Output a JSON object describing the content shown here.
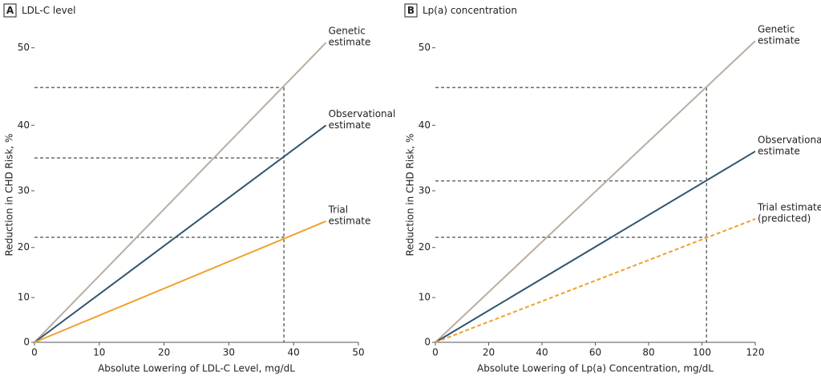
{
  "chart_data": [
    {
      "type": "line",
      "panel": "A",
      "title": "LDL-C level",
      "x_label": "Absolute Lowering of LDL-C Level, mg/dL",
      "y_label": "Reduction in CHD Risk, %",
      "yscale": "log-complement",
      "xlim": [
        0,
        50
      ],
      "xticks": [
        0,
        10,
        20,
        30,
        40,
        50
      ],
      "ylim": [
        0,
        52
      ],
      "yticks": [
        0,
        10,
        20,
        30,
        40,
        50
      ],
      "x": [
        0,
        45
      ],
      "series": [
        {
          "label_lines": [
            "Genetic",
            "estimate"
          ],
          "color": "#b9ae9e",
          "dashed": false,
          "values": [
            0,
            50.6
          ]
        },
        {
          "label_lines": [
            "Observational",
            "estimate"
          ],
          "color": "#2f566f",
          "dashed": false,
          "values": [
            0,
            40
          ]
        },
        {
          "label_lines": [
            "Trial",
            "estimate"
          ],
          "color": "#f0a12b",
          "dashed": false,
          "values": [
            0,
            24.8
          ]
        }
      ],
      "reference": {
        "x": 38.5,
        "y": [
          45.1,
          35.2,
          21.9
        ]
      }
    },
    {
      "type": "line",
      "panel": "B",
      "title": "Lp(a) concentration",
      "x_label": "Absolute Lowering of Lp(a) Concentration, mg/dL",
      "y_label": "Reduction in CHD Risk, %",
      "yscale": "log-complement",
      "xlim": [
        0,
        120
      ],
      "xticks": [
        0,
        20,
        40,
        60,
        80,
        100,
        120
      ],
      "ylim": [
        0,
        52
      ],
      "yticks": [
        0,
        10,
        20,
        30,
        40,
        50
      ],
      "x": [
        0,
        120
      ],
      "series": [
        {
          "label_lines": [
            "Genetic",
            "estimate"
          ],
          "color": "#b9ae9e",
          "dashed": false,
          "values": [
            0,
            50.8
          ]
        },
        {
          "label_lines": [
            "Observational",
            "estimate"
          ],
          "color": "#2f566f",
          "dashed": false,
          "values": [
            0,
            36.2
          ]
        },
        {
          "label_lines": [
            "Trial estimate",
            "(predicted)"
          ],
          "color": "#f0a12b",
          "dashed": true,
          "values": [
            0,
            25.2
          ]
        }
      ],
      "reference": {
        "x": 101.7,
        "y": [
          45.1,
          31.6,
          21.9
        ]
      }
    }
  ]
}
